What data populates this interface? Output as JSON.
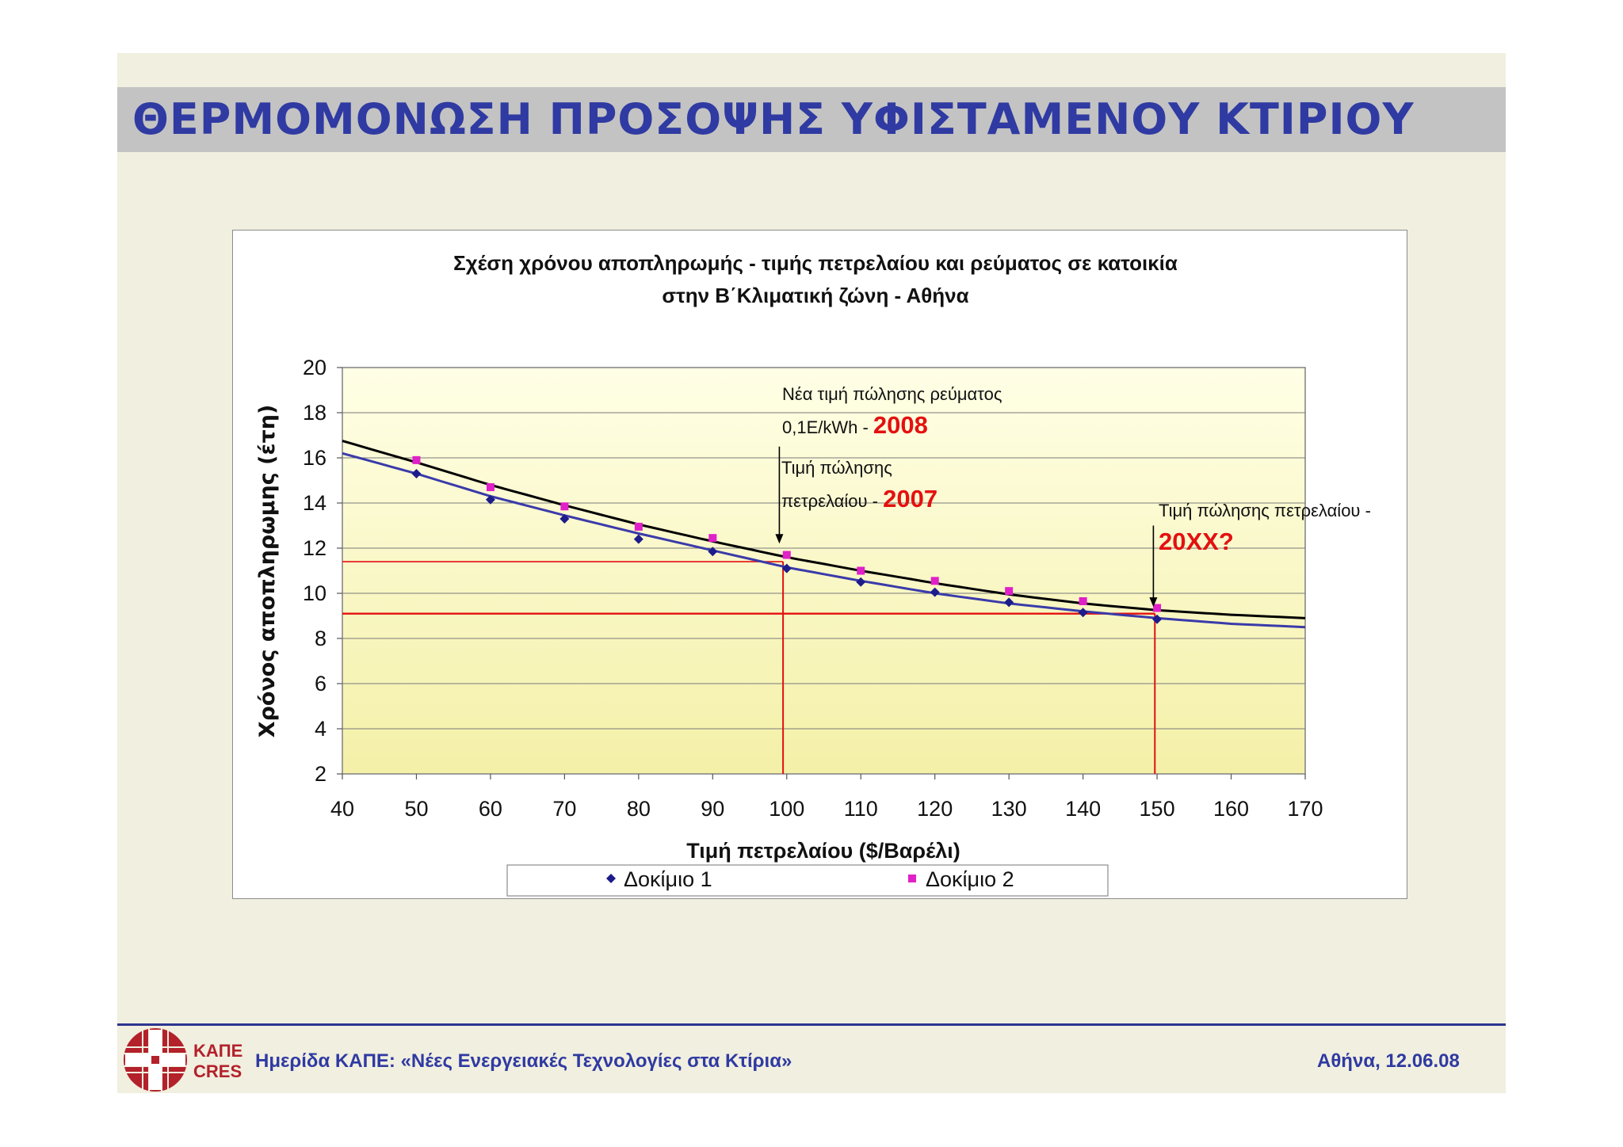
{
  "slide": {
    "title": "ΘΕΡΜΟΜΟΝΩΣΗ ΠΡΟΣΟΨΗΣ ΥΦΙΣΤΑΜΕΝΟΥ ΚΤΙΡΙΟΥ"
  },
  "footer": {
    "left_text": "Ημερίδα ΚΑΠΕ: «Νέες Ενεργειακές Τεχνολογίες στα Κτίρια»",
    "right_text": "Αθήνα, 12.06.08",
    "logo_text_top": "ΚΑΠΕ",
    "logo_text_bottom": "CRES"
  },
  "colors": {
    "title": "#2f3aa2",
    "plot_bg_top": "#ffffe6",
    "plot_bg_bottom": "#f4f0a8",
    "series1": "#1c1c8a",
    "series2": "#e020c8",
    "trend1": "#3a3aaa",
    "trend2": "#000000",
    "annotation_red": "#e41010"
  },
  "chart_data": {
    "type": "scatter",
    "title_line1": "Σχέση χρόνου αποπληρωμής - τιμής πετρελαίου και ρεύματος σε κατοικία",
    "title_line2": "στην Β΄Κλιματική ζώνη - Αθήνα",
    "xlabel": "Τιμή πετρελαίου ($/Βαρέλι)",
    "ylabel": "Χρόνος αποπληρωμης (έτη)",
    "xlim": [
      40,
      170
    ],
    "ylim": [
      2,
      20
    ],
    "xticks": [
      40,
      50,
      60,
      70,
      80,
      90,
      100,
      110,
      120,
      130,
      140,
      150,
      160,
      170
    ],
    "yticks": [
      2,
      4,
      6,
      8,
      10,
      12,
      14,
      16,
      18,
      20
    ],
    "grid": true,
    "legend_position": "bottom",
    "series": [
      {
        "name": "Δοκίμιο 1",
        "marker": "diamond",
        "x": [
          50,
          60,
          70,
          80,
          90,
          100,
          110,
          120,
          130,
          140,
          150
        ],
        "y": [
          15.3,
          14.15,
          13.3,
          12.4,
          11.85,
          11.1,
          10.5,
          10.05,
          9.6,
          9.15,
          8.85
        ],
        "trend": {
          "x": [
            40,
            50,
            60,
            70,
            80,
            90,
            100,
            110,
            120,
            130,
            140,
            150,
            160,
            170
          ],
          "y": [
            16.2,
            15.3,
            14.3,
            13.45,
            12.65,
            11.9,
            11.15,
            10.55,
            10.0,
            9.55,
            9.2,
            8.9,
            8.65,
            8.5
          ]
        }
      },
      {
        "name": "Δοκίμιο 2",
        "marker": "square",
        "x": [
          50,
          60,
          70,
          80,
          90,
          100,
          110,
          120,
          130,
          140,
          150
        ],
        "y": [
          15.9,
          14.7,
          13.85,
          12.95,
          12.45,
          11.7,
          11.0,
          10.55,
          10.1,
          9.65,
          9.35
        ],
        "trend": {
          "x": [
            40,
            50,
            60,
            70,
            80,
            90,
            100,
            110,
            120,
            130,
            140,
            150,
            160,
            170
          ],
          "y": [
            16.75,
            15.8,
            14.8,
            13.9,
            13.05,
            12.3,
            11.6,
            11.0,
            10.45,
            9.95,
            9.55,
            9.25,
            9.05,
            8.9
          ]
        }
      }
    ],
    "reference_lines": [
      {
        "x": 99.5,
        "y": 11.4
      },
      {
        "x": 149.7,
        "y": 9.1
      }
    ],
    "annotations": [
      {
        "id": "electricity",
        "line1": "Νέα τιμή πώλησης ρεύματος",
        "line2_prefix": "0,1E/kWh - ",
        "line2_highlight": "2008"
      },
      {
        "id": "oil2007",
        "line1": "Τιμή πώλησης",
        "line2_prefix": "πετρελαίου - ",
        "line2_highlight": "2007",
        "arrow_x": 99,
        "arrow_from_y": 16.5,
        "arrow_to_y": 12.2
      },
      {
        "id": "oil20xx",
        "line1": "Τιμή πώλησης πετρελαίου -",
        "line2_highlight": "20XX?",
        "arrow_x": 149.5,
        "arrow_from_y": 13.0,
        "arrow_to_y": 9.4
      }
    ]
  }
}
